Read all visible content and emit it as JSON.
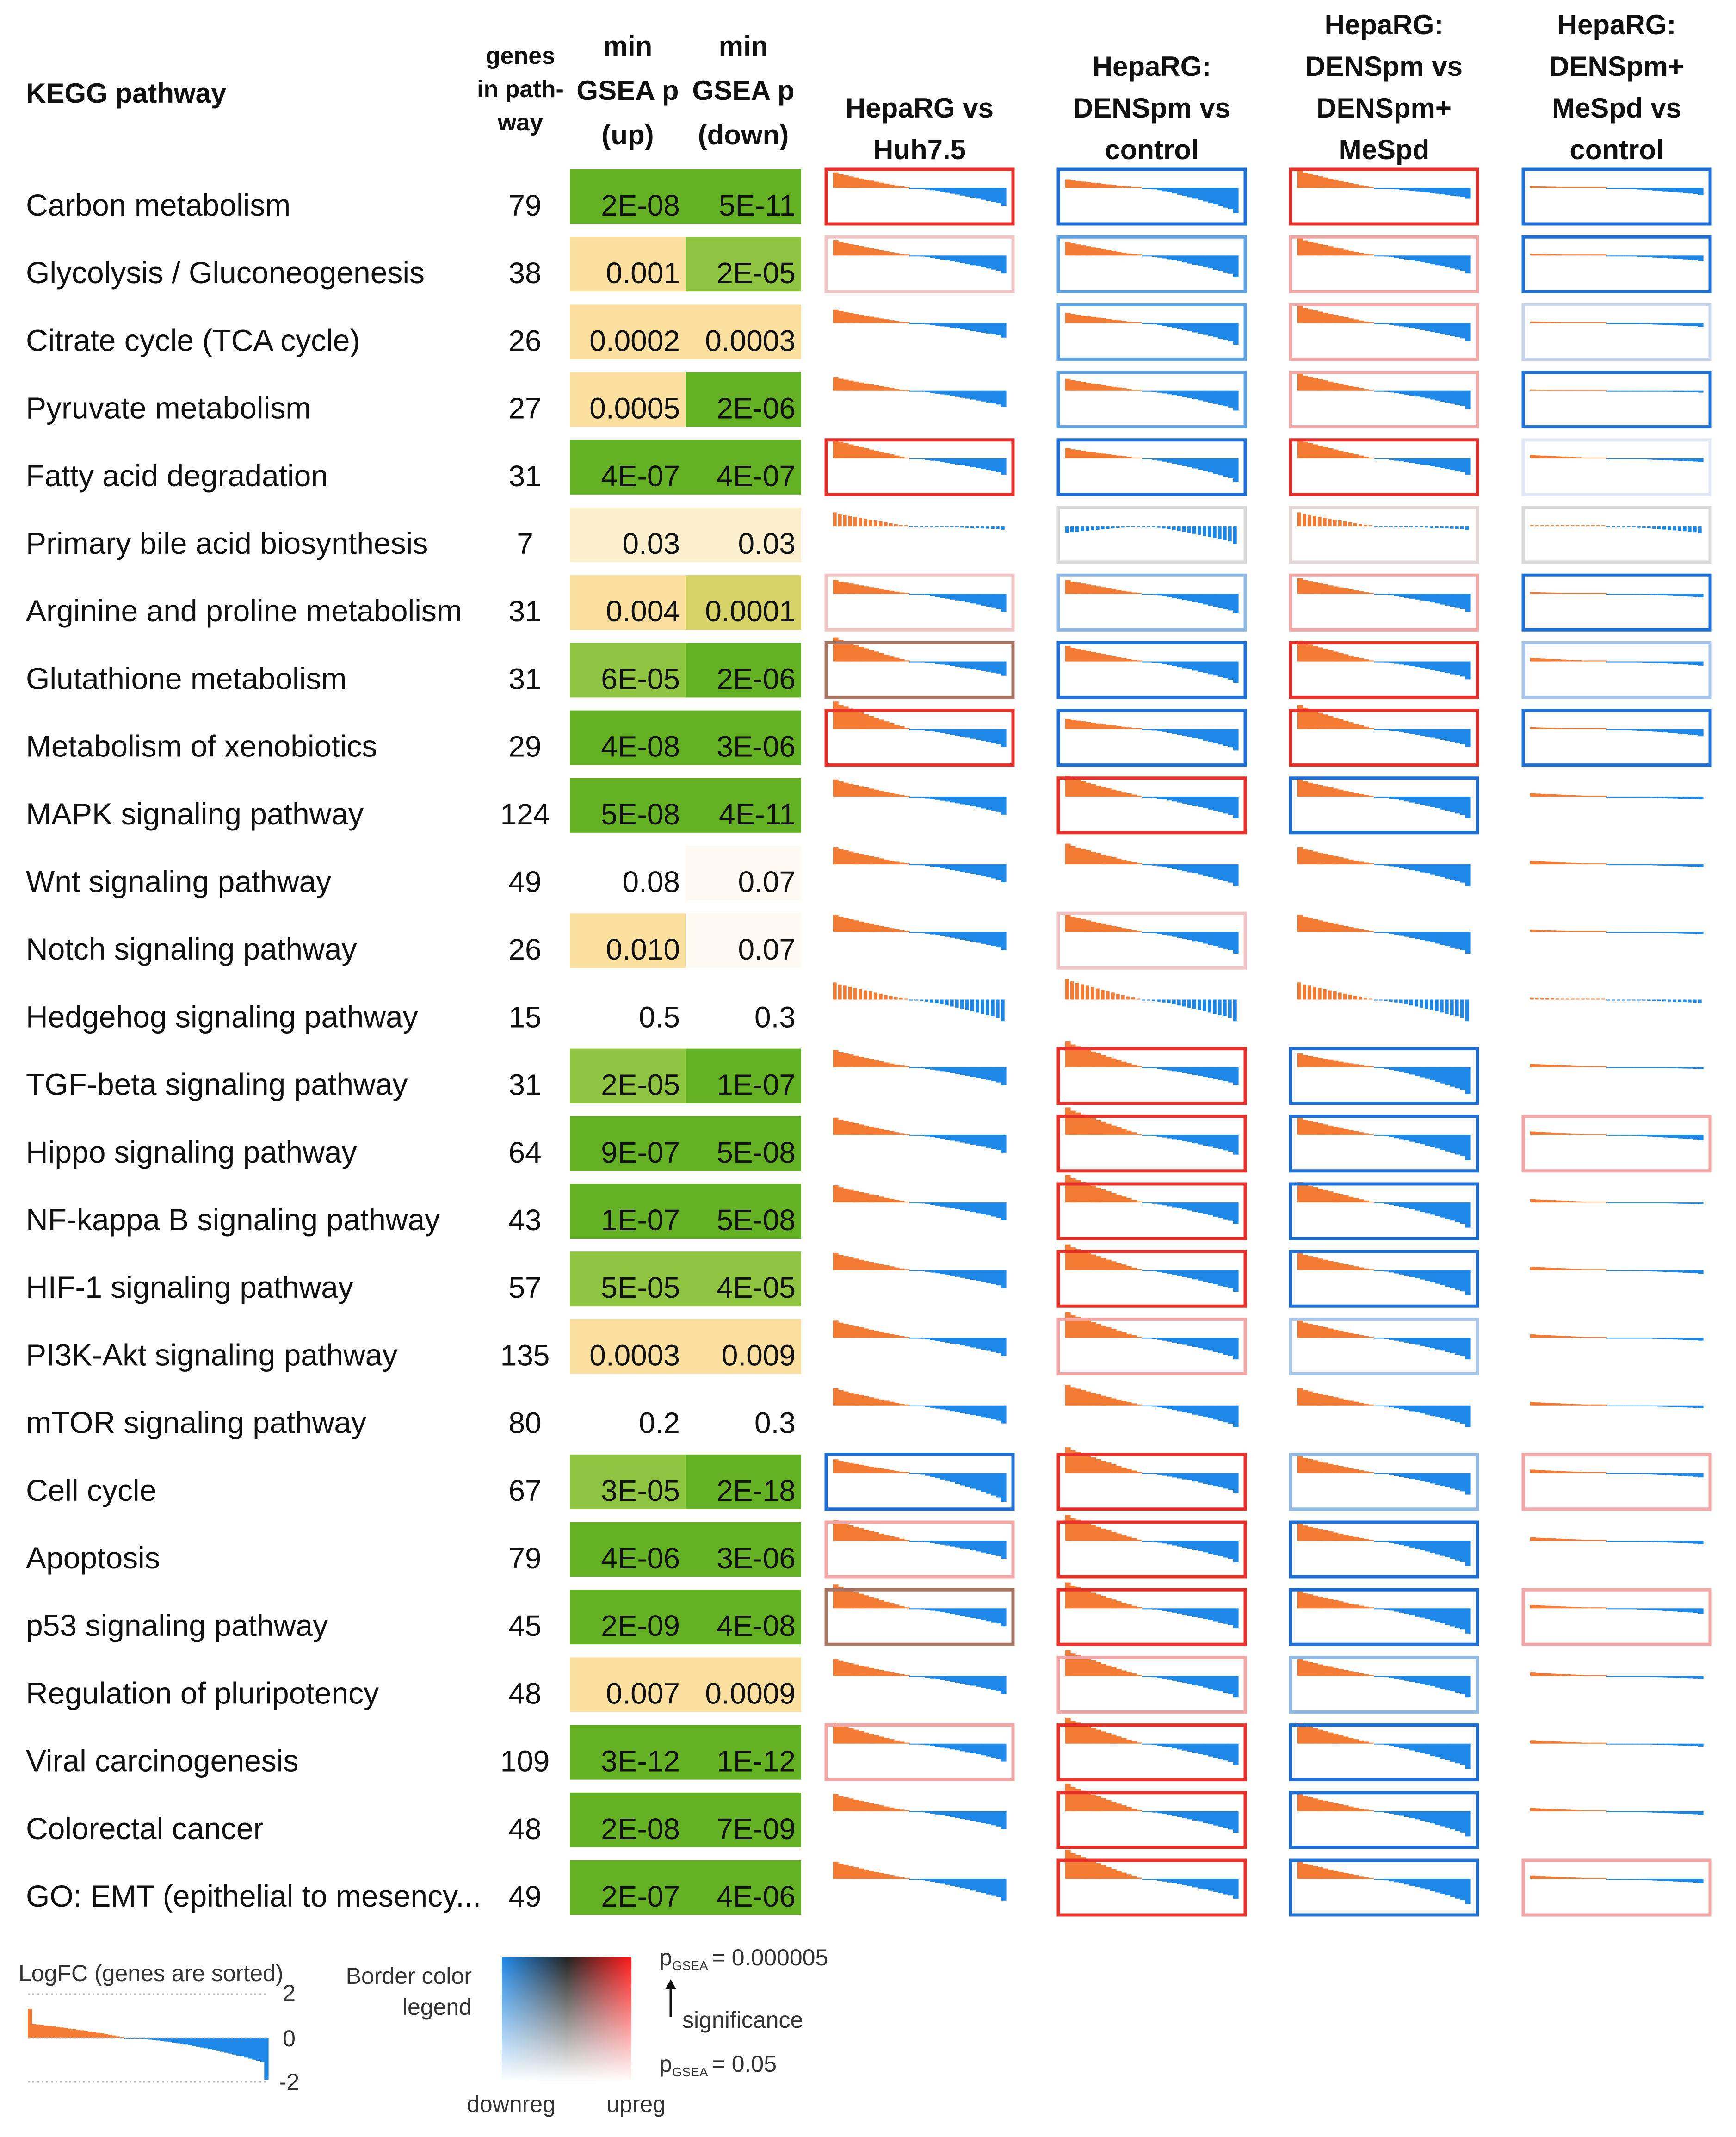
{
  "chart_data": {
    "type": "table",
    "title": "KEGG pathway",
    "headers": {
      "pathway": "KEGG pathway",
      "genes": [
        "genes",
        "in path-",
        "way"
      ],
      "min_up": [
        "min",
        "GSEA p",
        "(up)"
      ],
      "min_down": [
        "min",
        "GSEA p",
        "(down)"
      ],
      "comparisons": [
        [
          "HepaRG vs",
          "Huh7.5"
        ],
        [
          "HepaRG:",
          "DENSpm vs",
          "control"
        ],
        [
          "HepaRG:",
          "DENSpm vs",
          "DENSpm+",
          "MeSpd"
        ],
        [
          "HepaRG:",
          "DENSpm+",
          "MeSpd vs",
          "control"
        ]
      ]
    },
    "rows": [
      {
        "name": "Carbon metabolism",
        "genes": 79,
        "up": "2E-08",
        "down": "5E-11",
        "up_color": "#63b123",
        "down_color": "#63b123",
        "borders": [
          "#e8312a",
          "#1e6fd6",
          "#e8312a",
          "#1e6fd6"
        ],
        "shapes": [
          [
            0.45,
            -0.5
          ],
          [
            0.25,
            -0.7
          ],
          [
            0.5,
            -0.3
          ],
          [
            0.05,
            -0.2
          ]
        ]
      },
      {
        "name": "Glycolysis / Gluconeogenesis",
        "genes": 38,
        "up": "0.001",
        "down": "2E-05",
        "up_color": "#fbe0a0",
        "down_color": "#8fc440",
        "borders": [
          "#f0c4c4",
          "#5ea2e6",
          "#f2a6a6",
          "#1e6fd6"
        ],
        "shapes": [
          [
            0.45,
            -0.5
          ],
          [
            0.4,
            -0.6
          ],
          [
            0.5,
            -0.5
          ],
          [
            0.05,
            -0.15
          ]
        ]
      },
      {
        "name": "Citrate cycle (TCA cycle)",
        "genes": 26,
        "up": "0.0002",
        "down": "0.0003",
        "up_color": "#fbe0a0",
        "down_color": "#fbe0a0",
        "borders": [
          "none",
          "#5ea2e6",
          "#f2a6a6",
          "#c6d3ec"
        ],
        "shapes": [
          [
            0.4,
            -0.4
          ],
          [
            0.3,
            -0.6
          ],
          [
            0.5,
            -0.5
          ],
          [
            0.05,
            -0.1
          ]
        ]
      },
      {
        "name": "Pyruvate metabolism",
        "genes": 27,
        "up": "0.0005",
        "down": "2E-06",
        "up_color": "#fbe0a0",
        "down_color": "#63b123",
        "borders": [
          "none",
          "#5ea2e6",
          "#f2a6a6",
          "#1e6fd6"
        ],
        "shapes": [
          [
            0.4,
            -0.45
          ],
          [
            0.35,
            -0.55
          ],
          [
            0.5,
            -0.5
          ],
          [
            0.04,
            -0.05
          ]
        ]
      },
      {
        "name": "Fatty acid degradation",
        "genes": 31,
        "up": "4E-07",
        "down": "4E-07",
        "up_color": "#63b123",
        "down_color": "#63b123",
        "borders": [
          "#e8312a",
          "#1e6fd6",
          "#e8312a",
          "#e2e8f4"
        ],
        "shapes": [
          [
            0.55,
            -0.45
          ],
          [
            0.3,
            -0.65
          ],
          [
            0.55,
            -0.45
          ],
          [
            0.1,
            -0.1
          ]
        ]
      },
      {
        "name": "Primary bile acid biosynthesis",
        "genes": 7,
        "up": "0.03",
        "down": "0.03",
        "up_color": "#fdf0cf",
        "down_color": "#fdf0cf",
        "borders": [
          "none",
          "#d9d9d9",
          "#e2d8d8",
          "#d9d9d9"
        ],
        "shapes": [
          [
            0.4,
            -0.1
          ],
          [
            -0.2,
            -0.5
          ],
          [
            0.4,
            -0.1
          ],
          [
            0.02,
            -0.2
          ]
        ]
      },
      {
        "name": "Arginine and proline metabolism",
        "genes": 31,
        "up": "0.004",
        "down": "0.0001",
        "up_color": "#fbe0a0",
        "down_color": "#d6d268",
        "borders": [
          "#f0c4c4",
          "#8fb8e4",
          "#f2a6a6",
          "#1e6fd6"
        ],
        "shapes": [
          [
            0.4,
            -0.5
          ],
          [
            0.4,
            -0.55
          ],
          [
            0.45,
            -0.5
          ],
          [
            0.05,
            -0.1
          ]
        ]
      },
      {
        "name": "Glutathione metabolism",
        "genes": 31,
        "up": "6E-05",
        "down": "2E-06",
        "up_color": "#8fc440",
        "down_color": "#63b123",
        "borders": [
          "#a87462",
          "#1e6fd6",
          "#e8312a",
          "#a9c7ec"
        ],
        "shapes": [
          [
            0.7,
            -0.4
          ],
          [
            0.45,
            -0.6
          ],
          [
            0.6,
            -0.5
          ],
          [
            0.1,
            -0.12
          ]
        ]
      },
      {
        "name": "Metabolism of xenobiotics",
        "genes": 29,
        "up": "4E-08",
        "down": "3E-06",
        "up_color": "#63b123",
        "down_color": "#63b123",
        "borders": [
          "#e8312a",
          "#1e6fd6",
          "#e8312a",
          "#1e6fd6"
        ],
        "shapes": [
          [
            0.8,
            -0.5
          ],
          [
            0.3,
            -0.6
          ],
          [
            0.7,
            -0.5
          ],
          [
            0.05,
            -0.2
          ]
        ]
      },
      {
        "name": "MAPK signaling pathway",
        "genes": 124,
        "up": "5E-08",
        "down": "4E-11",
        "up_color": "#63b123",
        "down_color": "#63b123",
        "borders": [
          "none",
          "#e8312a",
          "#1e6fd6",
          "none"
        ],
        "shapes": [
          [
            0.5,
            -0.5
          ],
          [
            0.6,
            -0.6
          ],
          [
            0.5,
            -0.6
          ],
          [
            0.1,
            -0.08
          ]
        ]
      },
      {
        "name": "Wnt signaling pathway",
        "genes": 49,
        "up": "0.08",
        "down": "0.07",
        "up_color": "#ffffff",
        "down_color": "#fffaf3",
        "borders": [
          "none",
          "none",
          "none",
          "none"
        ],
        "shapes": [
          [
            0.5,
            -0.5
          ],
          [
            0.6,
            -0.6
          ],
          [
            0.5,
            -0.6
          ],
          [
            0.1,
            -0.08
          ]
        ]
      },
      {
        "name": "Notch signaling pathway",
        "genes": 26,
        "up": "0.010",
        "down": "0.07",
        "up_color": "#fbe0a0",
        "down_color": "#fffaf3",
        "borders": [
          "none",
          "#f0c4c4",
          "none",
          "none"
        ],
        "shapes": [
          [
            0.5,
            -0.5
          ],
          [
            0.5,
            -0.6
          ],
          [
            0.5,
            -0.6
          ],
          [
            0.06,
            -0.06
          ]
        ]
      },
      {
        "name": "Hedgehog signaling pathway",
        "genes": 15,
        "up": "0.5",
        "down": "0.3",
        "up_color": "#ffffff",
        "down_color": "#ffffff",
        "borders": [
          "none",
          "none",
          "none",
          "none"
        ],
        "shapes": [
          [
            0.5,
            -0.6
          ],
          [
            0.6,
            -0.6
          ],
          [
            0.5,
            -0.6
          ],
          [
            0.05,
            -0.1
          ]
        ]
      },
      {
        "name": "TGF-beta signaling pathway",
        "genes": 31,
        "up": "2E-05",
        "down": "1E-07",
        "up_color": "#8fc440",
        "down_color": "#63b123",
        "borders": [
          "none",
          "#e8312a",
          "#1e6fd6",
          "none"
        ],
        "shapes": [
          [
            0.5,
            -0.5
          ],
          [
            0.75,
            -0.5
          ],
          [
            0.4,
            -0.75
          ],
          [
            0.1,
            -0.05
          ]
        ]
      },
      {
        "name": "Hippo signaling pathway",
        "genes": 64,
        "up": "9E-07",
        "down": "5E-08",
        "up_color": "#63b123",
        "down_color": "#63b123",
        "borders": [
          "none",
          "#e8312a",
          "#1e6fd6",
          "#f2a6a6"
        ],
        "shapes": [
          [
            0.5,
            -0.5
          ],
          [
            0.8,
            -0.55
          ],
          [
            0.5,
            -0.7
          ],
          [
            0.1,
            -0.15
          ]
        ]
      },
      {
        "name": "NF-kappa B signaling pathway",
        "genes": 43,
        "up": "1E-07",
        "down": "5E-08",
        "up_color": "#63b123",
        "down_color": "#63b123",
        "borders": [
          "none",
          "#e8312a",
          "#1e6fd6",
          "none"
        ],
        "shapes": [
          [
            0.5,
            -0.5
          ],
          [
            0.8,
            -0.6
          ],
          [
            0.6,
            -0.7
          ],
          [
            0.1,
            -0.05
          ]
        ]
      },
      {
        "name": "HIF-1 signaling pathway",
        "genes": 57,
        "up": "5E-05",
        "down": "4E-05",
        "up_color": "#8fc440",
        "down_color": "#8fc440",
        "borders": [
          "none",
          "#e8312a",
          "#1e6fd6",
          "none"
        ],
        "shapes": [
          [
            0.5,
            -0.5
          ],
          [
            0.75,
            -0.6
          ],
          [
            0.5,
            -0.7
          ],
          [
            0.1,
            -0.1
          ]
        ]
      },
      {
        "name": "PI3K-Akt signaling pathway",
        "genes": 135,
        "up": "0.0003",
        "down": "0.009",
        "up_color": "#fbe0a0",
        "down_color": "#fbe0a0",
        "borders": [
          "none",
          "#f2a6a6",
          "#a9c7ec",
          "none"
        ],
        "shapes": [
          [
            0.5,
            -0.5
          ],
          [
            0.75,
            -0.6
          ],
          [
            0.5,
            -0.6
          ],
          [
            0.1,
            -0.08
          ]
        ]
      },
      {
        "name": "mTOR signaling pathway",
        "genes": 80,
        "up": "0.2",
        "down": "0.3",
        "up_color": "#ffffff",
        "down_color": "#ffffff",
        "borders": [
          "none",
          "none",
          "none",
          "none"
        ],
        "shapes": [
          [
            0.5,
            -0.5
          ],
          [
            0.6,
            -0.6
          ],
          [
            0.5,
            -0.6
          ],
          [
            0.1,
            -0.08
          ]
        ]
      },
      {
        "name": "Cell cycle",
        "genes": 67,
        "up": "3E-05",
        "down": "2E-18",
        "up_color": "#8fc440",
        "down_color": "#63b123",
        "borders": [
          "#1e6fd6",
          "#e8312a",
          "#8fb8e4",
          "#f2a6a6"
        ],
        "shapes": [
          [
            0.4,
            -0.8
          ],
          [
            0.75,
            -0.55
          ],
          [
            0.5,
            -0.6
          ],
          [
            0.1,
            -0.12
          ]
        ]
      },
      {
        "name": "Apoptosis",
        "genes": 79,
        "up": "4E-06",
        "down": "3E-06",
        "up_color": "#63b123",
        "down_color": "#63b123",
        "borders": [
          "#f2a6a6",
          "#e8312a",
          "#1e6fd6",
          "none"
        ],
        "shapes": [
          [
            0.6,
            -0.5
          ],
          [
            0.75,
            -0.6
          ],
          [
            0.5,
            -0.7
          ],
          [
            0.1,
            -0.1
          ]
        ]
      },
      {
        "name": "p53 signaling pathway",
        "genes": 45,
        "up": "2E-09",
        "down": "4E-08",
        "up_color": "#63b123",
        "down_color": "#63b123",
        "borders": [
          "#a87462",
          "#e8312a",
          "#1e6fd6",
          "#f2a6a6"
        ],
        "shapes": [
          [
            0.7,
            -0.5
          ],
          [
            0.75,
            -0.55
          ],
          [
            0.5,
            -0.7
          ],
          [
            0.1,
            -0.15
          ]
        ]
      },
      {
        "name": "Regulation of pluripotency",
        "genes": 48,
        "up": "0.007",
        "down": "0.0009",
        "up_color": "#fbe0a0",
        "down_color": "#fbe0a0",
        "borders": [
          "none",
          "#f2a6a6",
          "#8fb8e4",
          "none"
        ],
        "shapes": [
          [
            0.5,
            -0.5
          ],
          [
            0.75,
            -0.6
          ],
          [
            0.5,
            -0.6
          ],
          [
            0.1,
            -0.08
          ]
        ]
      },
      {
        "name": "Viral carcinogenesis",
        "genes": 109,
        "up": "3E-12",
        "down": "1E-12",
        "up_color": "#63b123",
        "down_color": "#63b123",
        "borders": [
          "#f2a6a6",
          "#e8312a",
          "#1e6fd6",
          "none"
        ],
        "shapes": [
          [
            0.6,
            -0.5
          ],
          [
            0.75,
            -0.6
          ],
          [
            0.6,
            -0.7
          ],
          [
            0.1,
            -0.08
          ]
        ]
      },
      {
        "name": "Colorectal cancer",
        "genes": 48,
        "up": "2E-08",
        "down": "7E-09",
        "up_color": "#63b123",
        "down_color": "#63b123",
        "borders": [
          "none",
          "#e8312a",
          "#1e6fd6",
          "none"
        ],
        "shapes": [
          [
            0.5,
            -0.5
          ],
          [
            0.8,
            -0.6
          ],
          [
            0.5,
            -0.7
          ],
          [
            0.1,
            -0.1
          ]
        ]
      },
      {
        "name": "GO: EMT (epithelial to mesency...",
        "genes": 49,
        "up": "2E-07",
        "down": "4E-06",
        "up_color": "#63b123",
        "down_color": "#63b123",
        "borders": [
          "none",
          "#e8312a",
          "#1e6fd6",
          "#f2a6a6"
        ],
        "shapes": [
          [
            0.5,
            -0.6
          ],
          [
            0.85,
            -0.55
          ],
          [
            0.5,
            -0.7
          ],
          [
            0.1,
            -0.12
          ]
        ]
      }
    ],
    "legend": {
      "logfc_title": "LogFC (genes are sorted)",
      "logfc_ticks": [
        "2",
        "0",
        "-2"
      ],
      "border_title": [
        "Border color",
        "legend"
      ],
      "p_top_prefix": "p",
      "p_top_sub": "GSEA",
      "p_top_value": "= 0.000005",
      "significance": "significance",
      "p_bottom_prefix": "p",
      "p_bottom_sub": "GSEA",
      "p_bottom_value": "= 0.05",
      "downreg": "downreg",
      "upreg": "upreg"
    },
    "colors": {
      "up_bar": "#f47b34",
      "down_bar": "#1e88e8",
      "text": "#111111"
    }
  }
}
